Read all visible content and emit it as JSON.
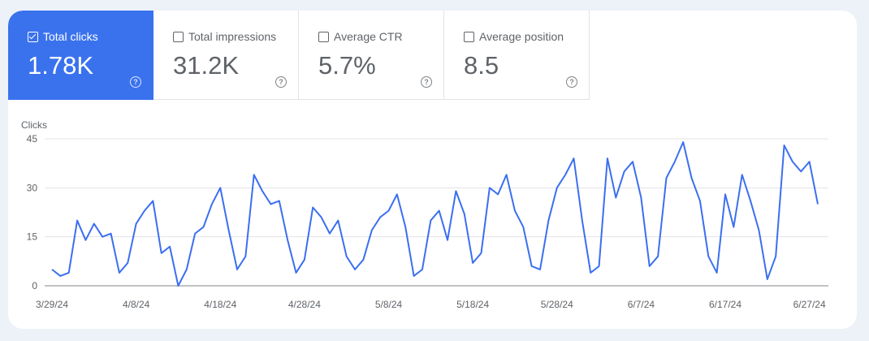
{
  "metrics": [
    {
      "label": "Total clicks",
      "value": "1.78K",
      "checked": true
    },
    {
      "label": "Total impressions",
      "value": "31.2K",
      "checked": false
    },
    {
      "label": "Average CTR",
      "value": "5.7%",
      "checked": false
    },
    {
      "label": "Average position",
      "value": "8.5",
      "checked": false
    }
  ],
  "colors": {
    "accent": "#3a72ee",
    "line": "#3b6ff0"
  },
  "chart_data": {
    "type": "line",
    "ylabel": "Clicks",
    "ylim": [
      0,
      45
    ],
    "yticks": [
      "0",
      "15",
      "30",
      "45"
    ],
    "grid": true,
    "x_start": "3/29/24",
    "x_end": "6/28/24",
    "xtick_labels": [
      "3/29/24",
      "4/8/24",
      "4/18/24",
      "4/28/24",
      "5/8/24",
      "5/18/24",
      "5/28/24",
      "6/7/24",
      "6/17/24",
      "6/27/24"
    ],
    "series": [
      {
        "values": [
          5,
          3,
          4,
          20,
          14,
          19,
          15,
          16,
          4,
          7,
          19,
          23,
          26,
          10,
          12,
          0,
          5,
          16,
          18,
          25,
          30,
          17,
          5,
          9,
          34,
          29,
          25,
          26,
          14,
          4,
          8,
          24,
          21,
          16,
          20,
          9,
          5,
          8,
          17,
          21,
          23,
          28,
          18,
          3,
          5,
          20,
          23,
          14,
          29,
          22,
          7,
          10,
          30,
          28,
          34,
          23,
          18,
          6,
          5,
          20,
          30,
          34,
          39,
          20,
          4,
          6,
          39,
          27,
          35,
          38,
          27,
          6,
          9,
          33,
          38,
          44,
          33,
          26,
          9,
          4,
          28,
          18,
          34,
          26,
          17,
          2,
          9,
          43,
          38,
          35,
          38,
          25
        ]
      }
    ]
  }
}
